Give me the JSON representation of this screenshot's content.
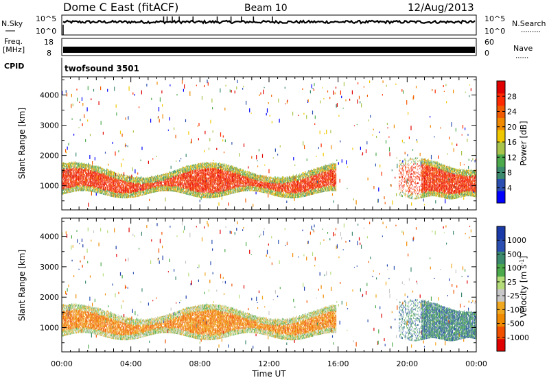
{
  "header": {
    "station": "Dome C East (fitACF)",
    "beam": "Beam 10",
    "date": "12/Aug/2013"
  },
  "aux_panels": {
    "nsky": {
      "label": "N.Sky",
      "ticks": [
        "10^5",
        "10^0"
      ]
    },
    "nsearch": {
      "label": "N.Search",
      "ticks": [
        "10^5",
        "10^0"
      ]
    },
    "freq": {
      "label_line1": "Freq.",
      "label_line2": "[MHz]",
      "ticks": [
        "18",
        "8"
      ]
    },
    "nave": {
      "label": "Nave",
      "ticks": [
        "60",
        "0"
      ]
    },
    "cpid": {
      "label": "CPID",
      "value": "twofsound 3501"
    }
  },
  "colors": {
    "power": [
      "#0000ff",
      "#2a4fb0",
      "#3c8a6e",
      "#4caa4c",
      "#a8c44a",
      "#f0c800",
      "#f08a00",
      "#f05a00",
      "#ff2a00",
      "#e00000"
    ],
    "velocity": [
      "#e00000",
      "#f05000",
      "#f08a00",
      "#f0a820",
      "#c8c8c8",
      "#b4dc78",
      "#4caa4c",
      "#3c8a6e",
      "#2a4fb0",
      "#1a3aa8"
    ]
  },
  "chart_data": [
    {
      "type": "heatmap",
      "name": "power",
      "ylabel": "Slant Range [km]",
      "y_ticks": [
        1000,
        2000,
        3000,
        4000
      ],
      "ylim": [
        200,
        4600
      ],
      "xlim_hours": [
        0,
        24
      ],
      "colorbar_label": "Power [dB]",
      "colorbar_ticks": [
        "4",
        "8",
        "12",
        "16",
        "20",
        "24",
        "28"
      ],
      "colorbar_range": [
        0,
        30
      ]
    },
    {
      "type": "heatmap",
      "name": "velocity",
      "xlabel": "Time UT",
      "x_ticks": [
        "00:00",
        "04:00",
        "08:00",
        "12:00",
        "16:00",
        "20:00",
        "00:00"
      ],
      "ylabel": "Slant Range [km]",
      "y_ticks": [
        1000,
        2000,
        3000,
        4000
      ],
      "ylim": [
        200,
        4600
      ],
      "xlim_hours": [
        0,
        24
      ],
      "colorbar_label": "Velocity [m s^-1]",
      "colorbar_ticks": [
        "-1000",
        "-500",
        "-100",
        "-25",
        "25",
        "100",
        "500",
        "1000"
      ]
    }
  ]
}
